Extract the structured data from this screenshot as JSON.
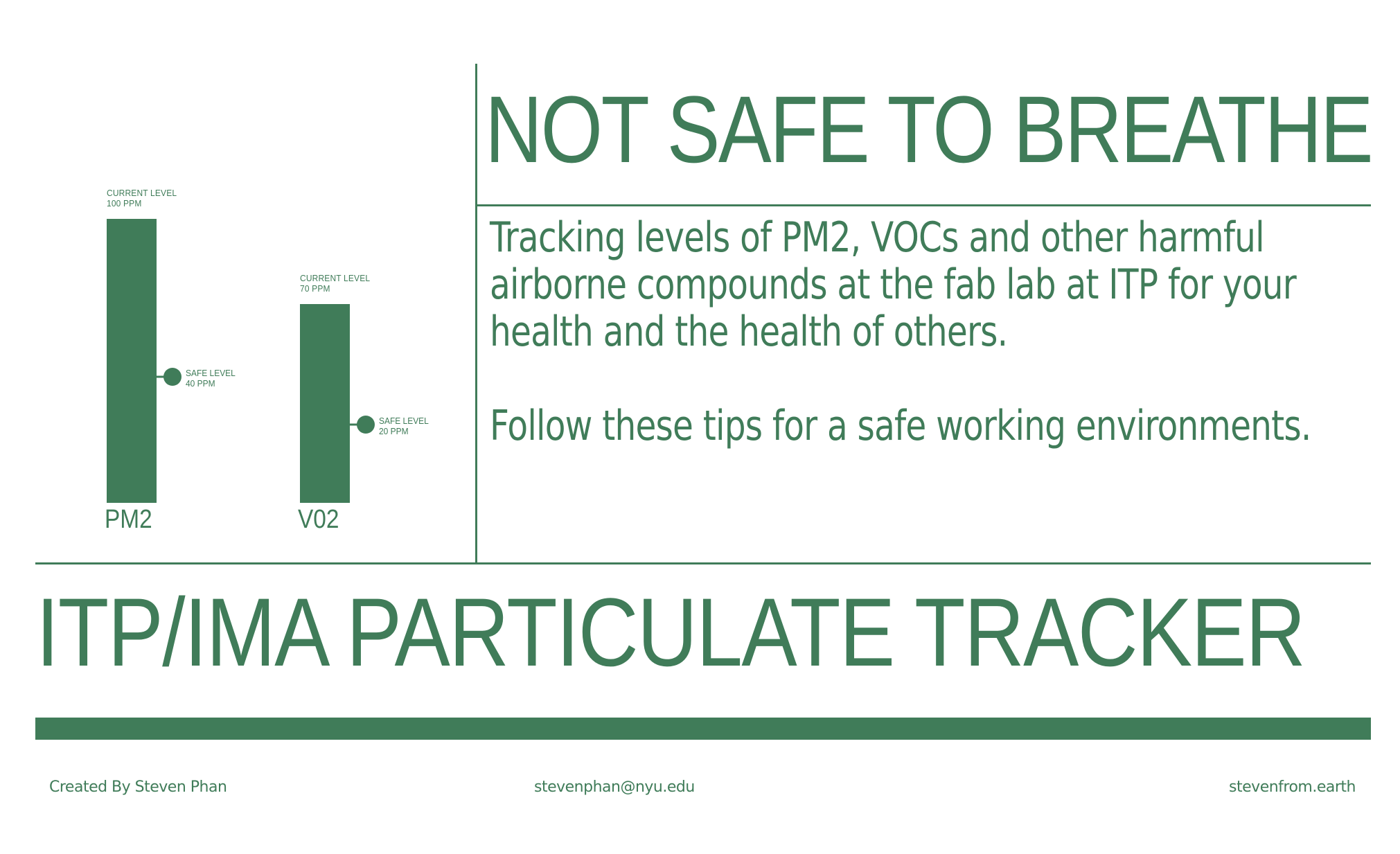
{
  "colors": {
    "accent": "#407c59",
    "background": "#ffffff"
  },
  "headline": "NOT SAFE TO BREATHE",
  "description": {
    "tracking": "Tracking levels of PM2, VOCs and other harmful airborne compounds at the fab lab at ITP for your health and the health of others.",
    "tips": "Follow these tips for a safe working environments."
  },
  "title": "ITP/IMA PARTICULATE TRACKER",
  "footer": {
    "credit": "Created By Steven Phan",
    "email": "stevenphan@nyu.edu",
    "website": "stevenfrom.earth"
  },
  "chart_data": {
    "type": "bar",
    "categories": [
      "PM2",
      "V02"
    ],
    "values": [
      100,
      70
    ],
    "unit": "PPM",
    "current_caption": "CURRENT LEVEL",
    "safe_caption": "SAFE LEVEL",
    "current_labels": [
      "100 PPM",
      "70 PPM"
    ],
    "safe_levels": [
      40,
      20
    ],
    "safe_labels": [
      "40 PPM",
      "20 PPM"
    ]
  }
}
